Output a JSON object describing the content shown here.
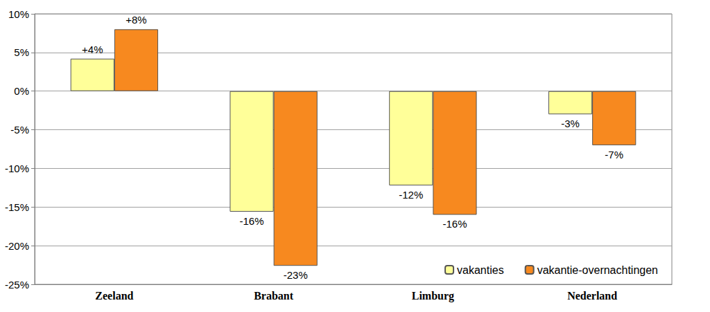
{
  "chart_data": {
    "type": "bar",
    "categories": [
      "Zeeland",
      "Brabant",
      "Limburg",
      "Nederland"
    ],
    "series": [
      {
        "name": "vakanties",
        "color": "#ffff99",
        "values": [
          4.2,
          -15.6,
          -12.2,
          -3
        ],
        "value_labels": [
          "+4%",
          "-16%",
          "-12%",
          "-3%"
        ]
      },
      {
        "name": "vakantie-overnachtingen",
        "color": "#f7891f",
        "values": [
          8,
          -22.6,
          -16,
          -7
        ],
        "value_labels": [
          "+8%",
          "-23%",
          "-16%",
          "-7%"
        ]
      }
    ],
    "ylim": [
      -25,
      10
    ],
    "yticks": [
      {
        "value": -25,
        "label": "-25%"
      },
      {
        "value": -20,
        "label": "-20%"
      },
      {
        "value": -15,
        "label": "-15%"
      },
      {
        "value": -10,
        "label": "-10%"
      },
      {
        "value": -5,
        "label": "-5%"
      },
      {
        "value": 0,
        "label": "0%"
      },
      {
        "value": 5,
        "label": "5%"
      },
      {
        "value": 10,
        "label": "10%"
      }
    ],
    "grid": true,
    "legend": "bottom-right",
    "data_labels": true
  }
}
